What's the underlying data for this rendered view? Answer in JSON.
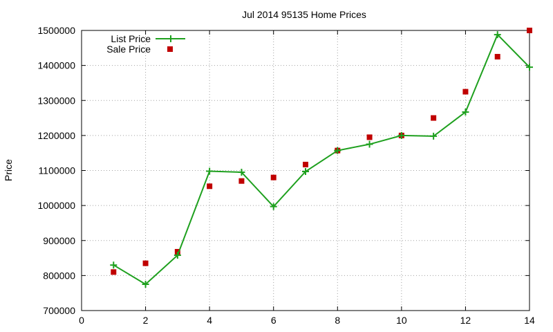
{
  "chart_data": {
    "type": "line",
    "title": "Jul 2014 95135 Home Prices",
    "xlabel": "",
    "ylabel": "Price",
    "xlim": [
      0,
      14
    ],
    "ylim": [
      700000,
      1500000
    ],
    "x_ticks": [
      "0",
      "2",
      "4",
      "6",
      "8",
      "10",
      "12",
      "14"
    ],
    "y_ticks": [
      "700000",
      "800000",
      "900000",
      "1000000",
      "1100000",
      "1200000",
      "1300000",
      "1400000",
      "1500000"
    ],
    "grid": true,
    "legend_position": "top-left",
    "series": [
      {
        "name": "List Price",
        "style": "line-with-plus-markers",
        "color": "#1ea01e",
        "x": [
          1,
          2,
          3,
          4,
          5,
          6,
          7,
          8,
          9,
          10,
          11,
          12,
          13,
          14
        ],
        "y": [
          830000,
          775000,
          858000,
          1098000,
          1095000,
          997000,
          1097000,
          1157000,
          1175000,
          1200000,
          1198000,
          1267000,
          1488000,
          1395000
        ]
      },
      {
        "name": "Sale Price",
        "style": "square-markers",
        "color": "#c00000",
        "x": [
          1,
          2,
          3,
          4,
          5,
          6,
          7,
          8,
          9,
          10,
          11,
          12,
          13,
          14
        ],
        "y": [
          810000,
          835000,
          868000,
          1055000,
          1070000,
          1080000,
          1117000,
          1157000,
          1195000,
          1200000,
          1250000,
          1325000,
          1425000,
          1500000
        ]
      }
    ]
  }
}
